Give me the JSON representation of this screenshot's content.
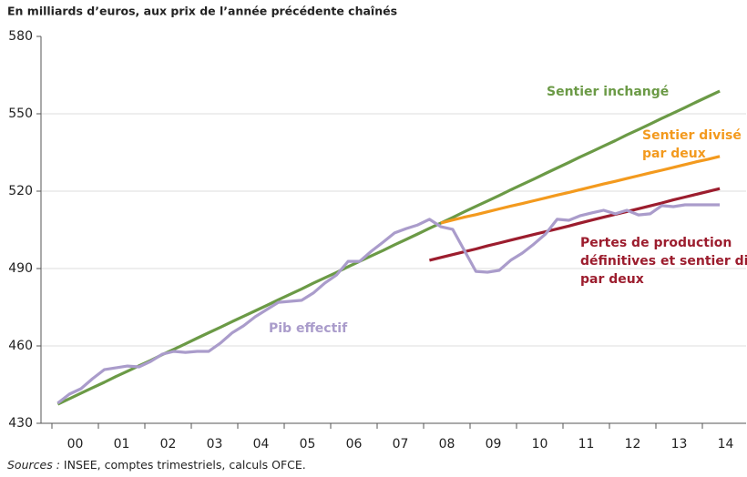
{
  "chart_data": {
    "type": "line",
    "subtitle": "En milliards d’euros, aux prix de l’année précédente chaînés",
    "source_label": "Sources :",
    "source": "INSEE, comptes trimestriels, calculs OFCE.",
    "x": [
      0.125,
      0.375,
      0.625,
      0.875,
      1.125,
      1.375,
      1.625,
      1.875,
      2.125,
      2.375,
      2.625,
      2.875,
      3.125,
      3.375,
      3.625,
      3.875,
      4.125,
      4.375,
      4.625,
      4.875,
      5.125,
      5.375,
      5.625,
      5.875,
      6.125,
      6.375,
      6.625,
      6.875,
      7.125,
      7.375,
      7.625,
      7.875,
      8.125,
      8.375,
      8.625,
      8.875,
      9.125,
      9.375,
      9.625,
      9.875,
      10.125,
      10.375,
      10.625,
      10.875,
      11.125,
      11.375,
      11.625,
      11.875,
      12.125,
      12.375,
      12.625,
      12.875,
      13.125,
      13.375,
      13.625,
      13.875,
      14.125,
      14.375
    ],
    "xlim": [
      -0.235,
      14.941
    ],
    "xticks": [
      {
        "value": 0.5,
        "label": "00"
      },
      {
        "value": 1.5,
        "label": "01"
      },
      {
        "value": 2.5,
        "label": "02"
      },
      {
        "value": 3.5,
        "label": "03"
      },
      {
        "value": 4.5,
        "label": "04"
      },
      {
        "value": 5.5,
        "label": "05"
      },
      {
        "value": 6.5,
        "label": "06"
      },
      {
        "value": 7.5,
        "label": "07"
      },
      {
        "value": 8.5,
        "label": "08"
      },
      {
        "value": 9.5,
        "label": "09"
      },
      {
        "value": 10.5,
        "label": "10"
      },
      {
        "value": 11.5,
        "label": "11"
      },
      {
        "value": 12.5,
        "label": "12"
      },
      {
        "value": 13.5,
        "label": "13"
      },
      {
        "value": 14.5,
        "label": "14"
      }
    ],
    "ylim": [
      430,
      580
    ],
    "yticks": [
      430,
      460,
      490,
      520,
      550,
      580
    ],
    "grid": true,
    "series": [
      {
        "name": "Sentier inchangé",
        "color": "#6b9a46",
        "values": [
          437.4,
          439.5,
          441.7,
          443.8,
          445.9,
          448.1,
          450.2,
          452.3,
          454.4,
          456.6,
          458.7,
          460.8,
          463.0,
          465.1,
          467.2,
          469.4,
          471.5,
          473.6,
          475.7,
          477.9,
          480.0,
          482.1,
          484.3,
          486.4,
          488.5,
          490.7,
          492.8,
          494.9,
          497.0,
          499.2,
          501.3,
          503.4,
          505.6,
          507.7,
          509.8,
          512.0,
          514.1,
          516.2,
          518.3,
          520.5,
          522.6,
          524.7,
          526.9,
          529.0,
          531.1,
          533.3,
          535.4,
          537.5,
          539.6,
          541.8,
          543.9,
          546.0,
          548.2,
          550.3,
          552.4,
          554.6,
          556.7,
          558.8
        ]
      },
      {
        "name": "Sentier divisé par deux",
        "color": "#f39a1e",
        "values": [
          null,
          null,
          null,
          null,
          null,
          null,
          null,
          null,
          null,
          null,
          null,
          null,
          null,
          null,
          null,
          null,
          null,
          null,
          null,
          null,
          null,
          null,
          null,
          null,
          null,
          null,
          null,
          null,
          null,
          null,
          null,
          null,
          null,
          507.7,
          508.8,
          509.9,
          510.9,
          512.0,
          513.1,
          514.2,
          515.2,
          516.3,
          517.4,
          518.5,
          519.5,
          520.6,
          521.7,
          522.8,
          523.8,
          524.9,
          526.0,
          527.1,
          528.1,
          529.2,
          530.3,
          531.4,
          532.4,
          533.5
        ]
      },
      {
        "name": "Pertes de production définitives et sentier divisé par deux",
        "color": "#9c1d2e",
        "values": [
          null,
          null,
          null,
          null,
          null,
          null,
          null,
          null,
          null,
          null,
          null,
          null,
          null,
          null,
          null,
          null,
          null,
          null,
          null,
          null,
          null,
          null,
          null,
          null,
          null,
          null,
          null,
          null,
          null,
          null,
          null,
          null,
          493.2,
          494.3,
          495.4,
          496.5,
          497.6,
          498.8,
          499.9,
          501.0,
          502.1,
          503.2,
          504.3,
          505.4,
          506.5,
          507.7,
          508.8,
          509.9,
          511.0,
          512.1,
          513.2,
          514.3,
          515.4,
          516.6,
          517.7,
          518.8,
          519.9,
          521.0
        ]
      },
      {
        "name": "Pib effectif",
        "color": "#aa9ccb",
        "values": [
          437.8,
          441.3,
          443.4,
          447.3,
          450.8,
          451.5,
          452.2,
          451.9,
          454.0,
          456.8,
          457.9,
          457.5,
          457.9,
          457.9,
          461.1,
          465.0,
          467.8,
          471.3,
          474.1,
          476.9,
          477.3,
          477.7,
          480.5,
          484.4,
          487.5,
          492.8,
          492.8,
          496.7,
          500.2,
          503.8,
          505.5,
          506.9,
          509.1,
          506.2,
          505.2,
          497.1,
          488.9,
          488.6,
          489.3,
          493.2,
          496.0,
          499.5,
          503.4,
          509.1,
          508.7,
          510.5,
          511.6,
          512.6,
          511.2,
          512.6,
          510.8,
          511.2,
          514.4,
          514.0,
          514.7,
          514.7,
          514.7,
          514.7
        ]
      }
    ]
  }
}
